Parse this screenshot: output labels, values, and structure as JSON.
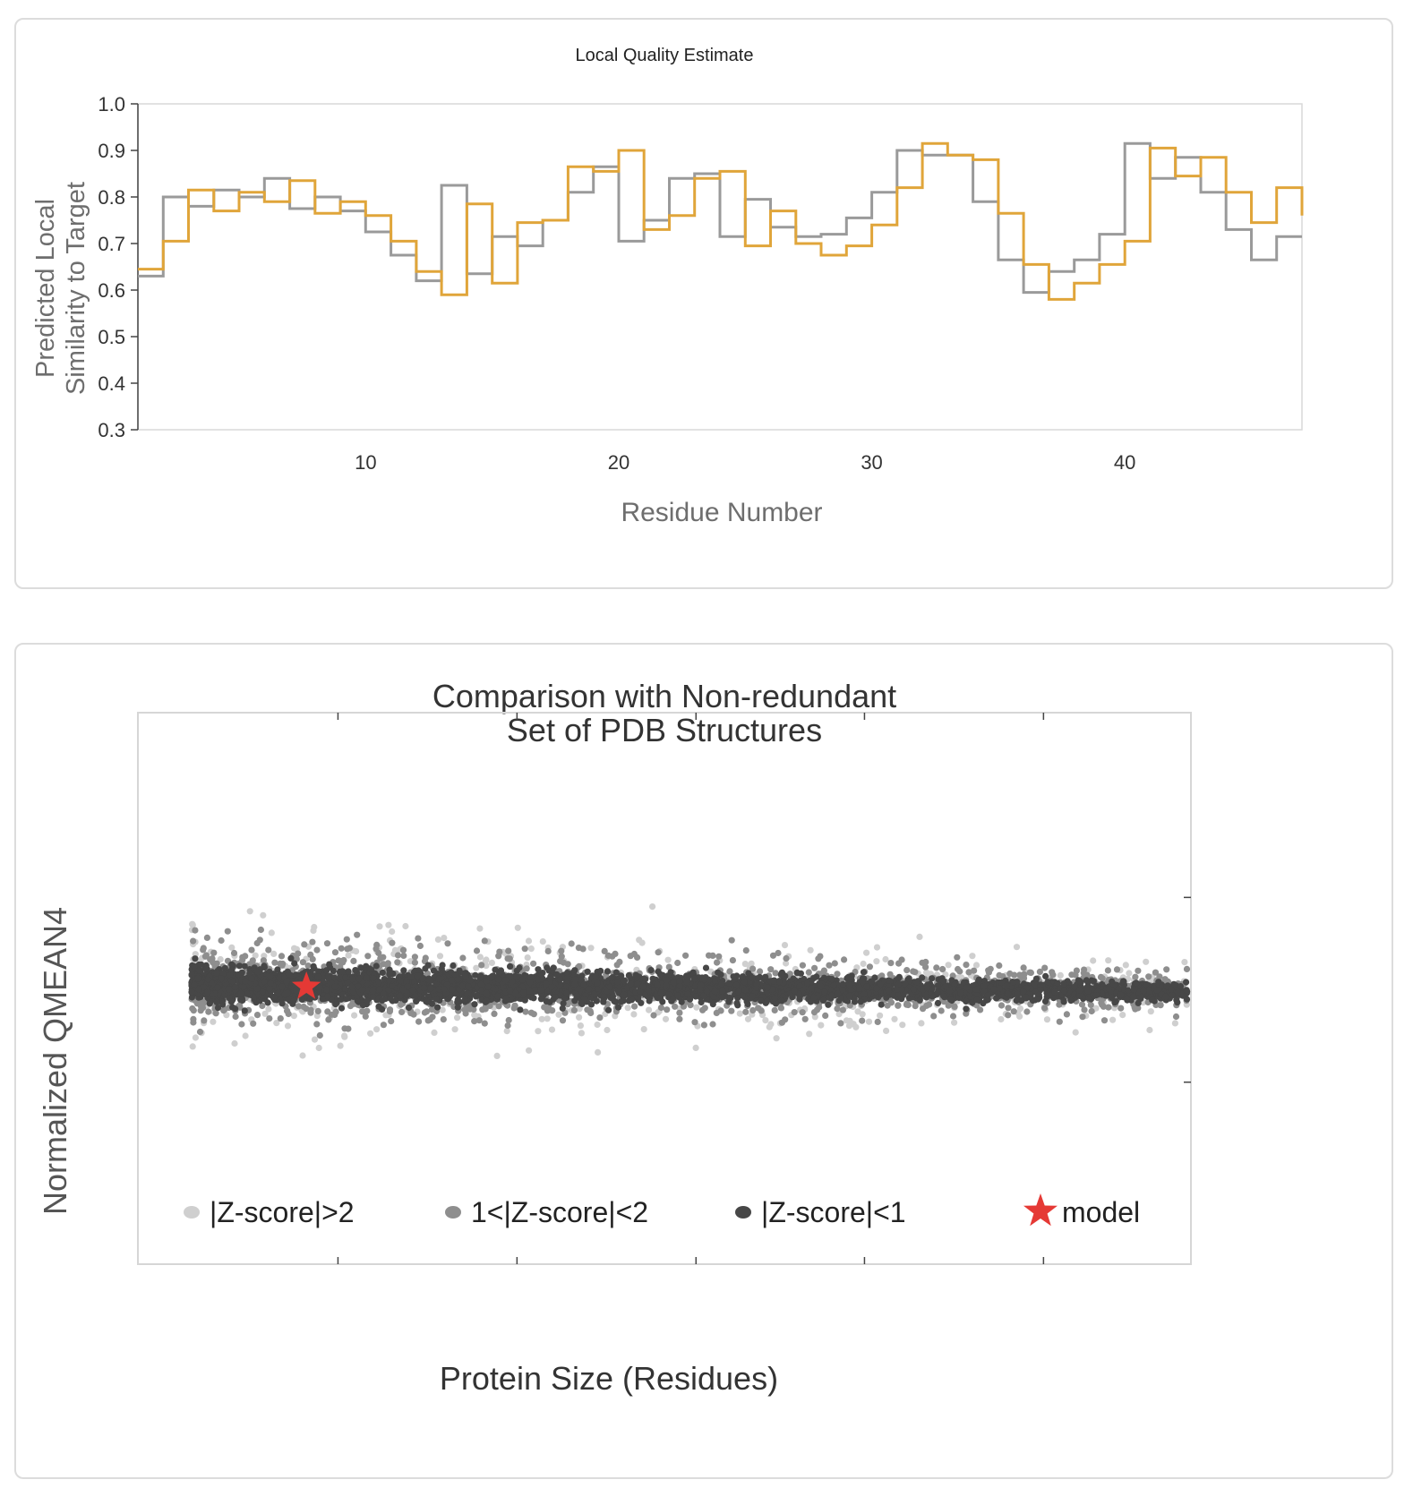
{
  "chart_data": [
    {
      "type": "line",
      "title": "Local Quality Estimate",
      "xlabel": "Residue Number",
      "ylabel_lines": [
        "Predicted Local",
        "Similarity to Target"
      ],
      "xlim": [
        1,
        47
      ],
      "ylim": [
        0.3,
        1.0
      ],
      "x_ticks": [
        "10",
        "20",
        "30",
        "40"
      ],
      "y_ticks": [
        "0.3",
        "0.4",
        "0.5",
        "0.6",
        "0.7",
        "0.8",
        "0.9",
        "1.0"
      ],
      "grid": false,
      "step": true,
      "series": [
        {
          "color": "#9a9a9a",
          "x": [
            1,
            2,
            3,
            4,
            5,
            6,
            7,
            8,
            9,
            10,
            11,
            12,
            13,
            14,
            15,
            16,
            17,
            18,
            19,
            20,
            21,
            22,
            23,
            24,
            25,
            26,
            27,
            28,
            29,
            30,
            31,
            32,
            33,
            34,
            35,
            36,
            37,
            38,
            39,
            40,
            41,
            42,
            43,
            44,
            45,
            46
          ],
          "values": [
            0.63,
            0.8,
            0.78,
            0.815,
            0.8,
            0.84,
            0.775,
            0.8,
            0.77,
            0.725,
            0.675,
            0.62,
            0.825,
            0.635,
            0.715,
            0.695,
            0.75,
            0.81,
            0.865,
            0.705,
            0.75,
            0.84,
            0.85,
            0.715,
            0.795,
            0.735,
            0.715,
            0.72,
            0.755,
            0.81,
            0.9,
            0.89,
            0.89,
            0.79,
            0.665,
            0.595,
            0.64,
            0.665,
            0.72,
            0.915,
            0.84,
            0.885,
            0.81,
            0.73,
            0.665,
            0.715
          ]
        },
        {
          "color": "#e0a53a",
          "x": [
            1,
            2,
            3,
            4,
            5,
            6,
            7,
            8,
            9,
            10,
            11,
            12,
            13,
            14,
            15,
            16,
            17,
            18,
            19,
            20,
            21,
            22,
            23,
            24,
            25,
            26,
            27,
            28,
            29,
            30,
            31,
            32,
            33,
            34,
            35,
            36,
            37,
            38,
            39,
            40,
            41,
            42,
            43,
            44,
            45,
            46,
            47
          ],
          "values": [
            0.645,
            0.705,
            0.815,
            0.77,
            0.81,
            0.79,
            0.835,
            0.765,
            0.79,
            0.76,
            0.705,
            0.64,
            0.59,
            0.785,
            0.615,
            0.745,
            0.75,
            0.865,
            0.855,
            0.9,
            0.73,
            0.76,
            0.84,
            0.855,
            0.695,
            0.77,
            0.7,
            0.675,
            0.695,
            0.74,
            0.82,
            0.915,
            0.89,
            0.88,
            0.765,
            0.655,
            0.58,
            0.615,
            0.655,
            0.705,
            0.905,
            0.845,
            0.885,
            0.81,
            0.745,
            0.82,
            0.76
          ]
        }
      ]
    },
    {
      "type": "scatter",
      "title_lines": [
        "Comparison with Non-redundant",
        "Set of PDB Structures"
      ],
      "xlabel": "Protein Size (Residues)",
      "ylabel": "Normalized QMEAN4",
      "grid": false,
      "legend_position": "bottom",
      "legend": [
        {
          "label": "|Z-score|>2",
          "color": "#cfcfcf",
          "marker": "circle"
        },
        {
          "label": "1<|Z-score|<2",
          "color": "#8e8e8e",
          "marker": "circle"
        },
        {
          "label": "|Z-score|<1",
          "color": "#474747",
          "marker": "circle"
        },
        {
          "label": "model",
          "color": "#e53935",
          "marker": "star"
        }
      ],
      "model_point": {
        "relative_x": 0.16,
        "relative_y": 0.5
      }
    }
  ]
}
